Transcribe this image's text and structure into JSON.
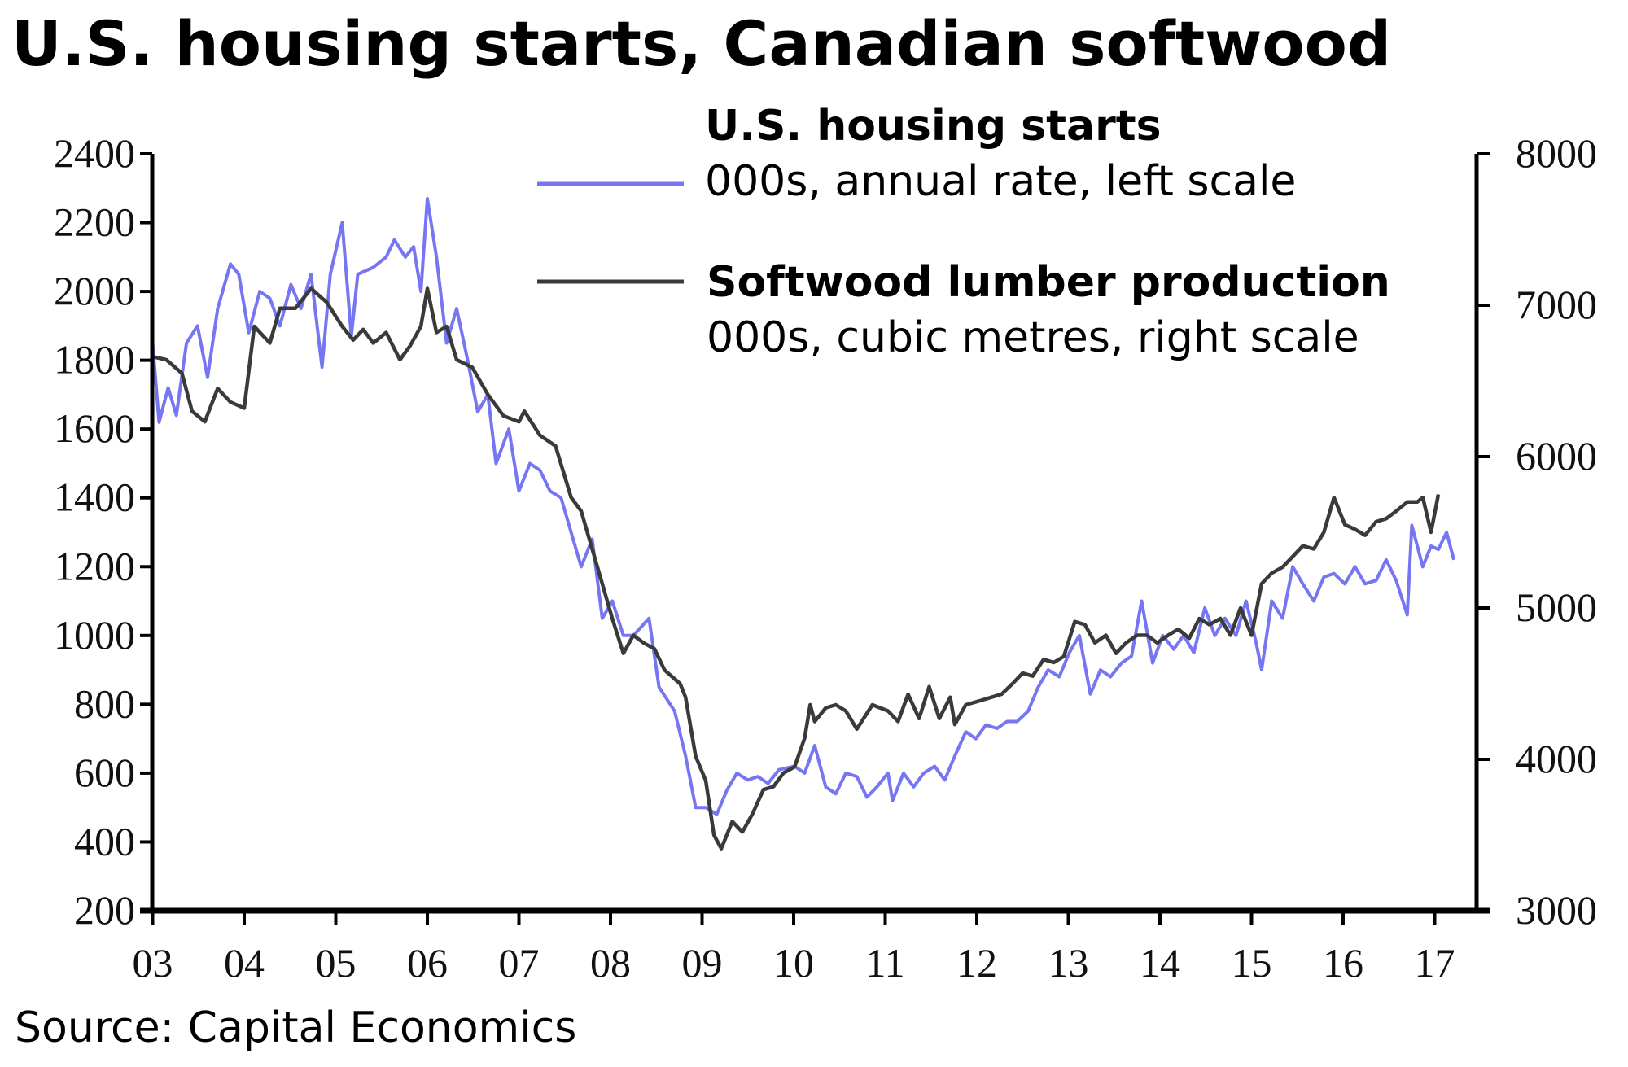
{
  "chart_data": {
    "type": "line",
    "title": "U.S. housing starts, Canadian softwood",
    "source": "Source: Capital Economics",
    "xlabel": "",
    "x_ticks": [
      "03",
      "04",
      "05",
      "06",
      "07",
      "08",
      "09",
      "10",
      "11",
      "12",
      "13",
      "14",
      "15",
      "16",
      "17"
    ],
    "x_tick_years": [
      2003,
      2004,
      2005,
      2006,
      2007,
      2008,
      2009,
      2010,
      2011,
      2012,
      2013,
      2014,
      2015,
      2016,
      2017
    ],
    "xlim": [
      2003,
      2017.6
    ],
    "left_axis": {
      "ylim": [
        200,
        2400
      ],
      "ticks": [
        "2400",
        "2200",
        "2000",
        "1800",
        "1600",
        "1400",
        "1200",
        "1000",
        "800",
        "600",
        "400",
        "200"
      ],
      "tick_values": [
        2400,
        2200,
        2000,
        1800,
        1600,
        1400,
        1200,
        1000,
        800,
        600,
        400,
        200
      ]
    },
    "right_axis": {
      "ylim": [
        3000,
        8000
      ],
      "ticks": [
        "8000",
        "7000",
        "6000",
        "5000",
        "4000",
        "3000"
      ],
      "tick_values": [
        8000,
        7000,
        6000,
        5000,
        4000,
        3000
      ]
    },
    "grid": false,
    "legend_position": "top-right",
    "series": [
      {
        "name": "U.S. housing starts",
        "subtitle": "000s, annual rate, left scale",
        "axis": "left",
        "color": "#7676f2",
        "x": [
          2003.0,
          2003.07,
          2003.17,
          2003.26,
          2003.37,
          2003.49,
          2003.6,
          2003.71,
          2003.85,
          2003.94,
          2004.05,
          2004.17,
          2004.28,
          2004.39,
          2004.51,
          2004.62,
          2004.73,
          2004.85,
          2004.94,
          2005.07,
          2005.17,
          2005.24,
          2005.41,
          2005.55,
          2005.64,
          2005.76,
          2005.85,
          2005.93,
          2006.0,
          2006.1,
          2006.21,
          2006.32,
          2006.44,
          2006.55,
          2006.66,
          2006.75,
          2006.89,
          2007.0,
          2007.12,
          2007.23,
          2007.34,
          2007.46,
          2007.57,
          2007.68,
          2007.8,
          2007.91,
          2008.02,
          2008.14,
          2008.25,
          2008.42,
          2008.53,
          2008.7,
          2008.82,
          2008.93,
          2009.04,
          2009.16,
          2009.27,
          2009.38,
          2009.5,
          2009.61,
          2009.72,
          2009.84,
          2010.01,
          2010.12,
          2010.23,
          2010.35,
          2010.46,
          2010.57,
          2010.69,
          2010.8,
          2010.91,
          2011.03,
          2011.08,
          2011.2,
          2011.31,
          2011.42,
          2011.54,
          2011.65,
          2011.76,
          2011.88,
          2011.99,
          2012.1,
          2012.22,
          2012.33,
          2012.44,
          2012.56,
          2012.67,
          2012.78,
          2012.9,
          2013.01,
          2013.12,
          2013.24,
          2013.35,
          2013.46,
          2013.58,
          2013.69,
          2013.8,
          2013.92,
          2014.03,
          2014.15,
          2014.26,
          2014.37,
          2014.49,
          2014.6,
          2014.71,
          2014.83,
          2014.94,
          2015.05,
          2015.11,
          2015.22,
          2015.34,
          2015.45,
          2015.56,
          2015.68,
          2015.79,
          2015.9,
          2016.02,
          2016.13,
          2016.24,
          2016.36,
          2016.47,
          2016.58,
          2016.7,
          2016.75,
          2016.87,
          2016.96,
          2017.04,
          2017.13,
          2017.21
        ],
        "values": [
          1850,
          1620,
          1720,
          1640,
          1850,
          1900,
          1750,
          1950,
          2080,
          2050,
          1880,
          2000,
          1980,
          1900,
          2020,
          1950,
          2050,
          1780,
          2050,
          2200,
          1870,
          2050,
          2070,
          2100,
          2150,
          2100,
          2130,
          2000,
          2270,
          2100,
          1850,
          1950,
          1800,
          1650,
          1700,
          1500,
          1600,
          1420,
          1500,
          1480,
          1420,
          1400,
          1300,
          1200,
          1280,
          1050,
          1100,
          1000,
          1000,
          1050,
          850,
          780,
          650,
          500,
          500,
          480,
          550,
          600,
          580,
          590,
          570,
          610,
          620,
          600,
          680,
          560,
          540,
          600,
          590,
          530,
          560,
          600,
          520,
          600,
          560,
          600,
          620,
          580,
          650,
          720,
          700,
          740,
          730,
          750,
          750,
          780,
          850,
          900,
          880,
          950,
          1000,
          830,
          900,
          880,
          920,
          940,
          1100,
          920,
          1000,
          960,
          1000,
          950,
          1080,
          1000,
          1050,
          1000,
          1100,
          980,
          900,
          1100,
          1050,
          1200,
          1150,
          1100,
          1170,
          1180,
          1150,
          1200,
          1150,
          1160,
          1220,
          1160,
          1060,
          1320,
          1200,
          1260,
          1250,
          1300,
          1220
        ]
      },
      {
        "name": "Softwood lumber production",
        "subtitle": "000s, cubic metres, right scale",
        "axis": "right",
        "color": "#3a3a3a",
        "x": [
          2003.0,
          2003.15,
          2003.32,
          2003.43,
          2003.57,
          2003.71,
          2003.85,
          2004.0,
          2004.11,
          2004.28,
          2004.39,
          2004.56,
          2004.73,
          2004.9,
          2005.07,
          2005.19,
          2005.3,
          2005.41,
          2005.55,
          2005.7,
          2005.81,
          2005.93,
          2006.0,
          2006.1,
          2006.21,
          2006.32,
          2006.49,
          2006.66,
          2006.83,
          2007.0,
          2007.06,
          2007.23,
          2007.4,
          2007.57,
          2007.68,
          2007.8,
          2007.91,
          2008.02,
          2008.14,
          2008.25,
          2008.36,
          2008.48,
          2008.59,
          2008.76,
          2008.82,
          2008.93,
          2009.04,
          2009.13,
          2009.21,
          2009.33,
          2009.44,
          2009.55,
          2009.67,
          2009.78,
          2009.89,
          2010.01,
          2010.12,
          2010.18,
          2010.23,
          2010.35,
          2010.46,
          2010.57,
          2010.69,
          2010.86,
          2011.03,
          2011.14,
          2011.25,
          2011.37,
          2011.48,
          2011.59,
          2011.71,
          2011.76,
          2011.88,
          2012.05,
          2012.16,
          2012.27,
          2012.39,
          2012.5,
          2012.61,
          2012.73,
          2012.84,
          2012.95,
          2013.07,
          2013.18,
          2013.29,
          2013.41,
          2013.52,
          2013.63,
          2013.75,
          2013.86,
          2013.97,
          2014.09,
          2014.2,
          2014.32,
          2014.43,
          2014.54,
          2014.66,
          2014.77,
          2014.88,
          2015.0,
          2015.11,
          2015.22,
          2015.34,
          2015.45,
          2015.56,
          2015.68,
          2015.79,
          2015.9,
          2016.02,
          2016.13,
          2016.24,
          2016.36,
          2016.47,
          2016.58,
          2016.7,
          2016.81,
          2016.87,
          2016.96,
          2017.04
        ],
        "values": [
          6660,
          6640,
          6550,
          6300,
          6230,
          6450,
          6360,
          6320,
          6860,
          6750,
          6980,
          6980,
          7110,
          7020,
          6860,
          6770,
          6840,
          6750,
          6820,
          6640,
          6730,
          6860,
          7110,
          6820,
          6860,
          6640,
          6590,
          6410,
          6270,
          6230,
          6300,
          6140,
          6070,
          5730,
          5640,
          5390,
          5160,
          4930,
          4700,
          4820,
          4770,
          4730,
          4590,
          4500,
          4410,
          4020,
          3860,
          3500,
          3410,
          3590,
          3520,
          3640,
          3800,
          3820,
          3910,
          3950,
          4140,
          4360,
          4250,
          4340,
          4360,
          4320,
          4200,
          4360,
          4320,
          4250,
          4430,
          4270,
          4480,
          4270,
          4410,
          4230,
          4360,
          4390,
          4410,
          4430,
          4500,
          4570,
          4550,
          4660,
          4640,
          4680,
          4910,
          4890,
          4770,
          4820,
          4700,
          4770,
          4820,
          4820,
          4770,
          4820,
          4860,
          4800,
          4930,
          4890,
          4930,
          4820,
          5000,
          4820,
          5160,
          5230,
          5270,
          5340,
          5410,
          5390,
          5500,
          5730,
          5550,
          5520,
          5480,
          5570,
          5590,
          5640,
          5700,
          5700,
          5730,
          5500,
          5750
        ]
      }
    ]
  }
}
